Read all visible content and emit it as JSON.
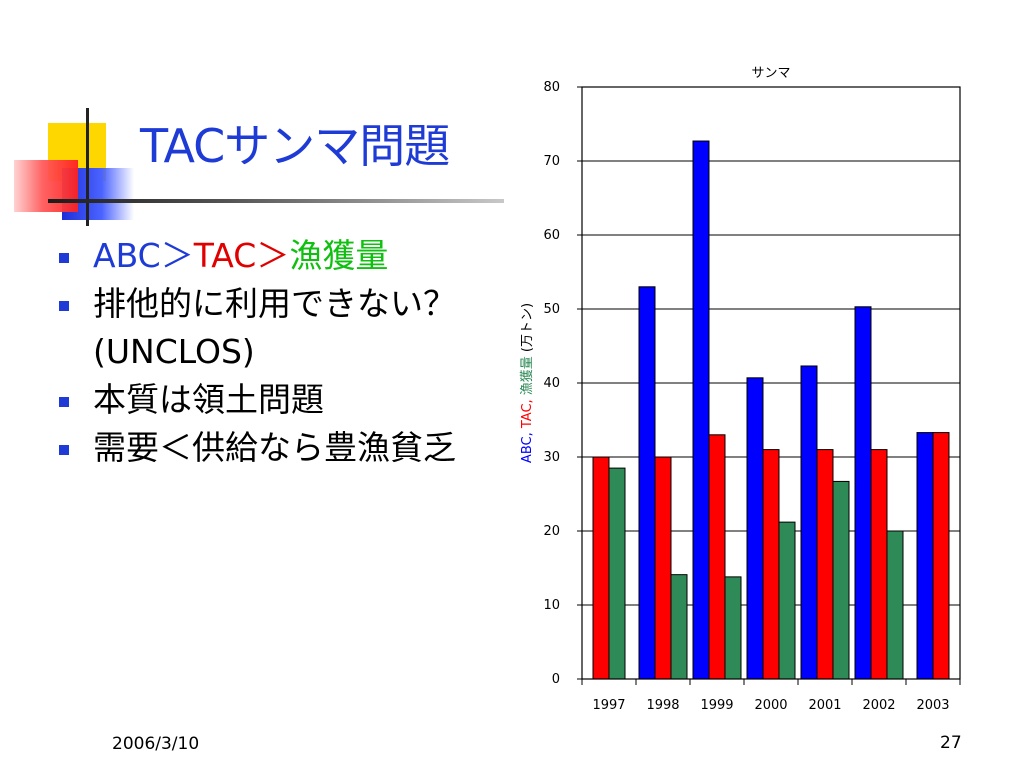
{
  "slide": {
    "title": "TACサンマ問題",
    "bullets": [
      {
        "parts": [
          {
            "text": "ABC",
            "color": "#1f3bd6"
          },
          {
            "text": "＞",
            "color": "#1f3bd6"
          },
          {
            "text": "TAC",
            "color": "#e00000"
          },
          {
            "text": "＞",
            "color": "#e00000"
          },
          {
            "text": "漁獲量",
            "color": "#10c010"
          }
        ]
      },
      {
        "text": "排他的に利用できない？(UNCLOS)"
      },
      {
        "text": "本質は領土問題"
      },
      {
        "text": "需要＜供給なら豊漁貧乏"
      }
    ],
    "footer_date": "2006/3/10",
    "page_number": "27"
  },
  "chart_data": {
    "type": "bar",
    "title": "サンマ",
    "categories": [
      "1997",
      "1998",
      "1999",
      "2000",
      "2001",
      "2002",
      "2003"
    ],
    "ylabel_parts": [
      {
        "text": "ABC,",
        "color": "#0000ff"
      },
      {
        "text": "TAC,",
        "color": "#ff0000"
      },
      {
        "text": "漁獲量",
        "color": "#2e8b57"
      },
      {
        "text": "(万トン)",
        "color": "#000000"
      }
    ],
    "ylim": [
      0,
      80
    ],
    "yticks": [
      "0",
      "10",
      "20",
      "30",
      "40",
      "50",
      "60",
      "70",
      "80"
    ],
    "grid": true,
    "series": [
      {
        "name": "ABC",
        "color": "#0000ff",
        "values": [
          null,
          53,
          72.7,
          40.7,
          42.3,
          50.3,
          33.3
        ]
      },
      {
        "name": "TAC",
        "color": "#ff0000",
        "values": [
          30,
          30,
          33,
          31,
          31,
          31,
          33.3
        ]
      },
      {
        "name": "漁獲量",
        "color": "#2e8b57",
        "values": [
          28.5,
          14.1,
          13.8,
          21.2,
          26.7,
          20,
          null
        ]
      }
    ]
  }
}
